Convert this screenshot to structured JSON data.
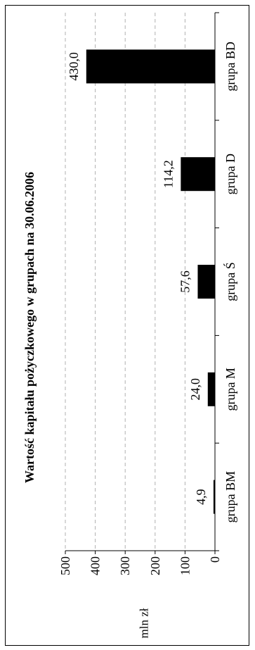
{
  "chart_data": {
    "type": "bar",
    "orientation": "rotated-90-ccw",
    "title": "Wartość kapitału pożyczkowego w grupach na 30.06.2006",
    "ylabel": "mln zł",
    "xlabel": "",
    "categories": [
      "grupa BM",
      "grupa M",
      "grupa Ś",
      "grupa D",
      "grupa BD"
    ],
    "values": [
      4.9,
      24.0,
      57.6,
      114.2,
      430.0
    ],
    "value_labels": [
      "4,9",
      "24,0",
      "57,6",
      "114,2",
      "430,0"
    ],
    "ylim": [
      0,
      500
    ],
    "yticks": [
      "0",
      "100",
      "200",
      "300",
      "400",
      "500"
    ],
    "grid": "dashed",
    "bar_color": "#000000",
    "grid_color": "#b0b0b0"
  }
}
